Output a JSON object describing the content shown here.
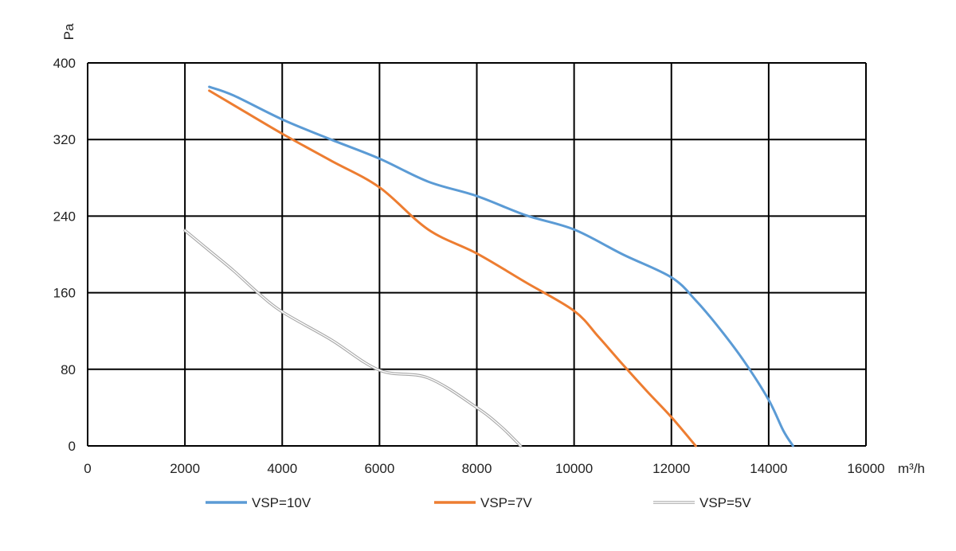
{
  "chart_data": {
    "type": "line",
    "xlabel": "m³/h",
    "ylabel": "Pa",
    "xlim": [
      0,
      16000
    ],
    "ylim": [
      0,
      400
    ],
    "x_ticks": [
      0,
      2000,
      4000,
      6000,
      8000,
      10000,
      12000,
      14000,
      16000
    ],
    "y_ticks": [
      0,
      80,
      160,
      240,
      320,
      400
    ],
    "grid": true,
    "legend_position": "bottom",
    "series": [
      {
        "name": "VSP=10V",
        "color": "#5b9bd5",
        "style": "solid",
        "points": [
          [
            2500,
            375
          ],
          [
            3000,
            366
          ],
          [
            4000,
            341
          ],
          [
            5000,
            320
          ],
          [
            6000,
            300
          ],
          [
            7000,
            276
          ],
          [
            8000,
            261
          ],
          [
            9000,
            241
          ],
          [
            10000,
            226
          ],
          [
            11000,
            200
          ],
          [
            12000,
            176
          ],
          [
            12500,
            152
          ],
          [
            13000,
            122
          ],
          [
            13500,
            88
          ],
          [
            14000,
            48
          ],
          [
            14300,
            16
          ],
          [
            14500,
            0
          ]
        ]
      },
      {
        "name": "VSP=7V",
        "color": "#ed7d31",
        "style": "solid",
        "points": [
          [
            2500,
            371
          ],
          [
            3000,
            356
          ],
          [
            4000,
            326
          ],
          [
            5000,
            298
          ],
          [
            6000,
            270
          ],
          [
            7000,
            226
          ],
          [
            8000,
            201
          ],
          [
            9000,
            171
          ],
          [
            10000,
            141
          ],
          [
            10500,
            114
          ],
          [
            11000,
            85
          ],
          [
            11500,
            57
          ],
          [
            12000,
            30
          ],
          [
            12500,
            0
          ]
        ]
      },
      {
        "name": "VSP=5V",
        "color": "#a6a6a6",
        "style": "double",
        "points": [
          [
            2000,
            225
          ],
          [
            2500,
            204
          ],
          [
            3000,
            183
          ],
          [
            3500,
            160
          ],
          [
            4000,
            140
          ],
          [
            5000,
            111
          ],
          [
            6000,
            79
          ],
          [
            7000,
            71
          ],
          [
            8000,
            40
          ],
          [
            8500,
            20
          ],
          [
            8900,
            0
          ]
        ]
      }
    ]
  }
}
